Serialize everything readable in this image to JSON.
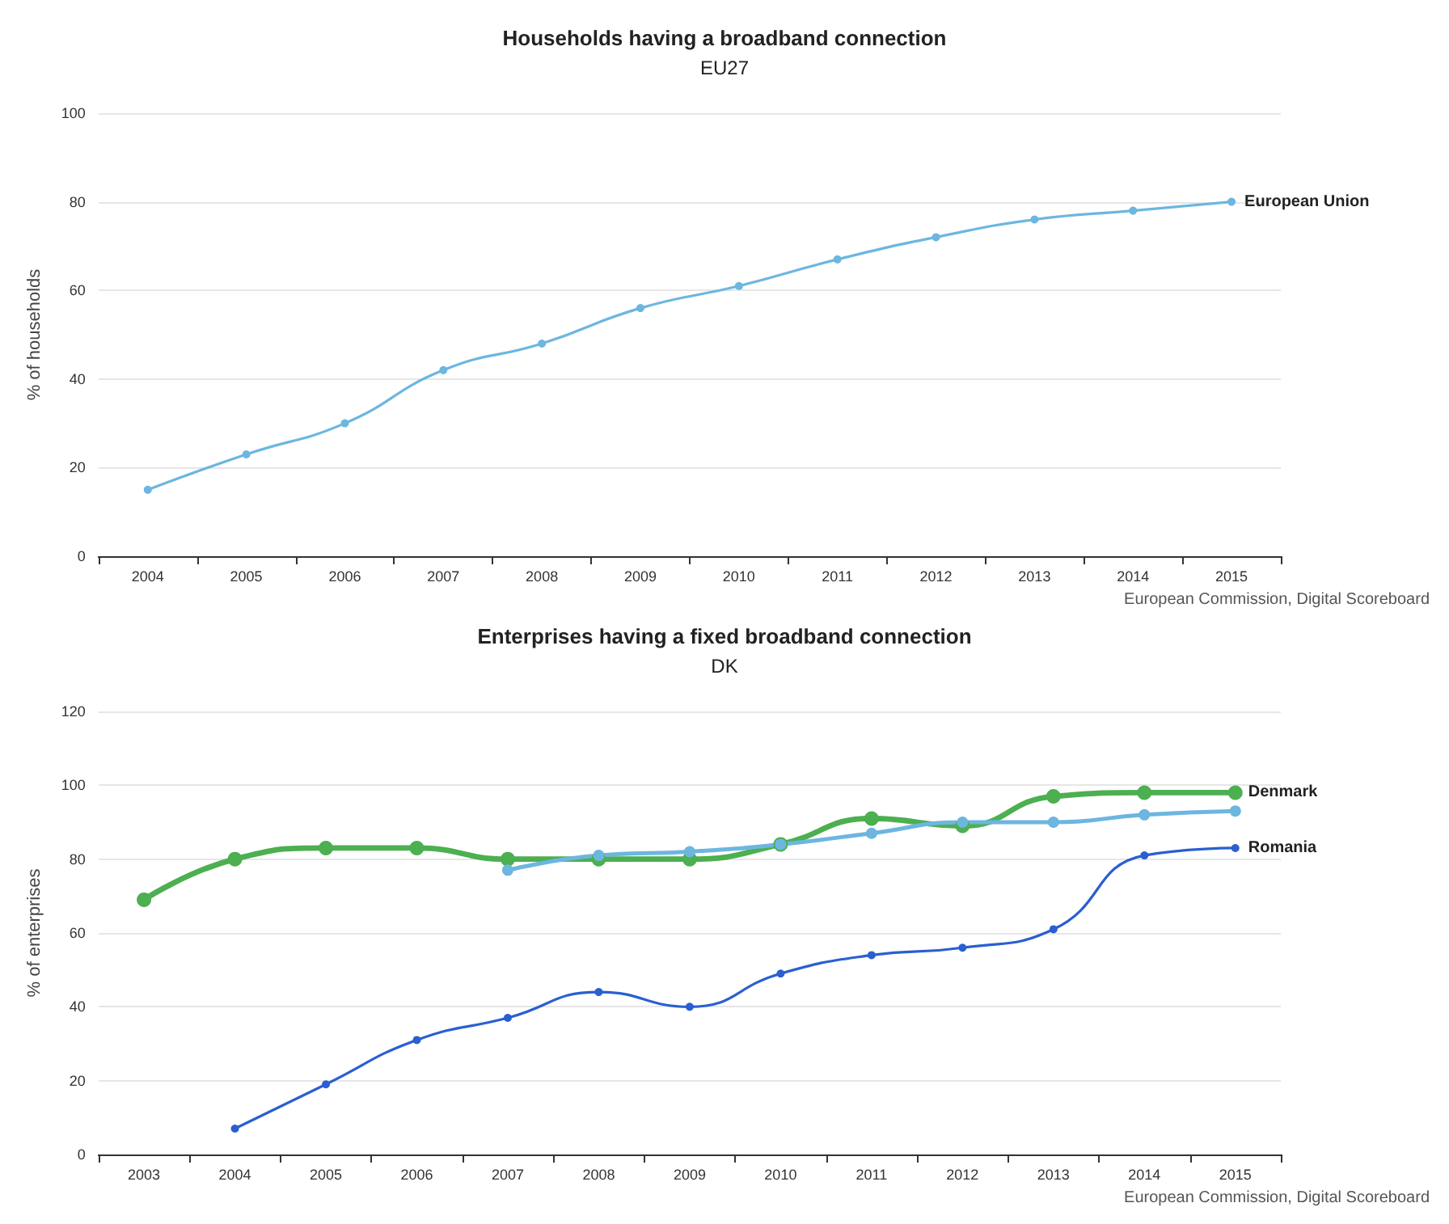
{
  "chart_data": [
    {
      "type": "line",
      "title": "Households having a broadband connection",
      "subtitle": "EU27",
      "ylabel": "% of households",
      "categories": [
        "2004",
        "2005",
        "2006",
        "2007",
        "2008",
        "2009",
        "2010",
        "2011",
        "2012",
        "2013",
        "2014",
        "2015"
      ],
      "series": [
        {
          "name": "European Union",
          "color": "#6cb6e0",
          "values": [
            15,
            23,
            30,
            42,
            48,
            56,
            61,
            67,
            72,
            76,
            78,
            80
          ]
        }
      ],
      "ylim": [
        0,
        100
      ],
      "yticks": [
        0,
        20,
        40,
        60,
        80,
        100
      ],
      "grid": "y",
      "legend": false,
      "marker": "circle",
      "annotations": [
        "European Commission, Digital Scoreboard"
      ]
    },
    {
      "type": "line",
      "title": "Enterprises having a fixed broadband connection",
      "subtitle": "DK",
      "ylabel": "% of enterprises",
      "categories": [
        "2003",
        "2004",
        "2005",
        "2006",
        "2007",
        "2008",
        "2009",
        "2010",
        "2011",
        "2012",
        "2013",
        "2014",
        "2015"
      ],
      "series": [
        {
          "name": "Denmark",
          "color": "#4caf50",
          "values": [
            69,
            80,
            83,
            83,
            80,
            80,
            80,
            84,
            91,
            89,
            97,
            98,
            98
          ]
        },
        {
          "color": "#6cb6e0",
          "values": [
            null,
            null,
            null,
            null,
            77,
            81,
            82,
            84,
            87,
            90,
            90,
            92,
            93
          ]
        },
        {
          "name": "Romania",
          "color": "#2a5fd0",
          "values": [
            null,
            7,
            19,
            31,
            37,
            44,
            40,
            49,
            54,
            56,
            61,
            81,
            83
          ]
        }
      ],
      "ylim": [
        0,
        120
      ],
      "yticks": [
        0,
        20,
        40,
        60,
        80,
        100,
        120
      ],
      "grid": "y",
      "legend": false,
      "marker": "circle",
      "annotations": [
        "European Commission, Digital Scoreboard"
      ]
    }
  ]
}
